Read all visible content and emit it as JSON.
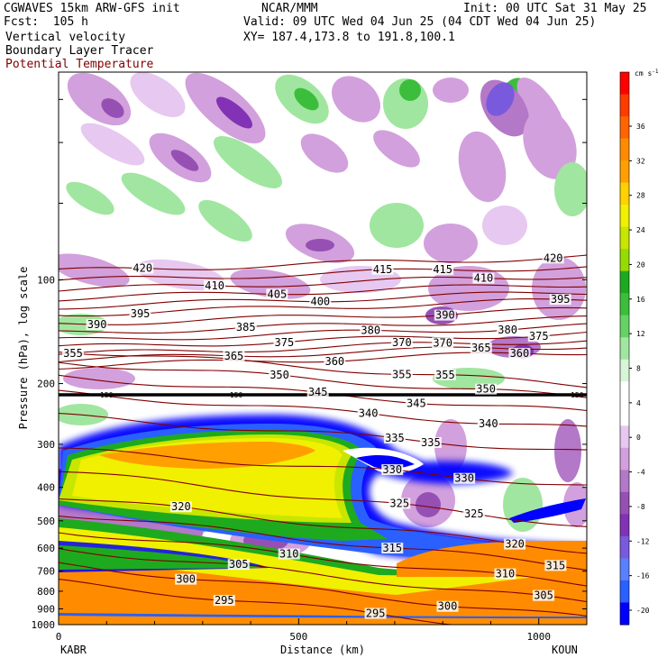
{
  "header": {
    "model": "CGWAVES 15km ARW-GFS init",
    "center": "NCAR/MMM",
    "init": "Init: 00 UTC Sat 31 May 25",
    "fcst": "Fcst:  105 h",
    "valid": "Valid: 09 UTC Wed 04 Jun 25 (04 CDT Wed 04 Jun 25)",
    "field1": "Vertical velocity",
    "xy": "XY= 187.4,173.8 to 191.8,100.1",
    "field2": "Boundary Layer Tracer",
    "field3": "Potential Temperature"
  },
  "chart_data": {
    "type": "heatmap",
    "title": "",
    "xlabel": "Distance (km)",
    "ylabel": "Pressure (hPa), log scale",
    "xlim": [
      0,
      1100
    ],
    "ylim": [
      1000,
      25
    ],
    "y_scale": "log",
    "x_ticks": [
      0,
      500,
      1000
    ],
    "y_ticks": [
      100,
      200,
      300,
      400,
      500,
      600,
      700,
      800,
      900,
      1000
    ],
    "x_endpoints": {
      "left": "KABR",
      "right": "KOUN"
    },
    "colorbar": {
      "units": "cm s",
      "units_exp": "-1",
      "ticks": [
        36,
        32,
        28,
        24,
        20,
        16,
        12,
        8,
        4,
        0,
        -4,
        -8,
        -12,
        -16,
        -20
      ],
      "colors": [
        "#0000ff",
        "#2a60ff",
        "#5a80ff",
        "#7a5adc",
        "#8232b4",
        "#9650b4",
        "#b478c8",
        "#d2a0dc",
        "#e6c8f0",
        "#ffffff",
        "#ffffff",
        "#d8f5d8",
        "#a0e6a0",
        "#64d264",
        "#3cbe3c",
        "#1eaa1e",
        "#96dc00",
        "#c8e600",
        "#f0f000",
        "#ffd200",
        "#ffa000",
        "#ff8c00",
        "#ff6400",
        "#ff3c00",
        "#ff0000"
      ]
    },
    "theta_contours": [
      {
        "value": 420,
        "label_x": [
          175,
          1030
        ]
      },
      {
        "value": 415,
        "label_x": [
          675,
          800
        ]
      },
      {
        "value": 410,
        "label_x": [
          325,
          885
        ]
      },
      {
        "value": 405,
        "label_x": [
          455
        ]
      },
      {
        "value": 400,
        "label_x": [
          545
        ]
      },
      {
        "value": 395,
        "label_x": [
          170,
          1045
        ]
      },
      {
        "value": 390,
        "label_x": [
          80,
          805
        ]
      },
      {
        "value": 385,
        "label_x": [
          390
        ]
      },
      {
        "value": 380,
        "label_x": [
          650,
          935
        ]
      },
      {
        "value": 375,
        "label_x": [
          470,
          1000
        ]
      },
      {
        "value": 370,
        "label_x": [
          715,
          800
        ]
      },
      {
        "value": 365,
        "label_x": [
          365,
          880
        ]
      },
      {
        "value": 360,
        "label_x": [
          575,
          960
        ]
      },
      {
        "value": 355,
        "label_x": [
          30,
          715,
          805
        ]
      },
      {
        "value": 350,
        "label_x": [
          460,
          890
        ]
      },
      {
        "value": 345,
        "label_x": [
          540,
          745
        ]
      },
      {
        "value": 340,
        "label_x": [
          645,
          895
        ]
      },
      {
        "value": 335,
        "label_x": [
          700,
          775
        ]
      },
      {
        "value": 330,
        "label_x": [
          695,
          845
        ]
      },
      {
        "value": 325,
        "label_x": [
          710,
          865
        ]
      },
      {
        "value": 320,
        "label_x": [
          255,
          950
        ]
      },
      {
        "value": 315,
        "label_x": [
          695,
          1035
        ]
      },
      {
        "value": 310,
        "label_x": [
          480,
          930
        ]
      },
      {
        "value": 305,
        "label_x": [
          375,
          1010
        ]
      },
      {
        "value": 300,
        "label_x": [
          265,
          810
        ]
      },
      {
        "value": 295,
        "label_x": [
          345,
          660
        ]
      }
    ],
    "tropopause_line": {
      "label": "150",
      "label_x": [
        100,
        370,
        1080
      ]
    }
  }
}
